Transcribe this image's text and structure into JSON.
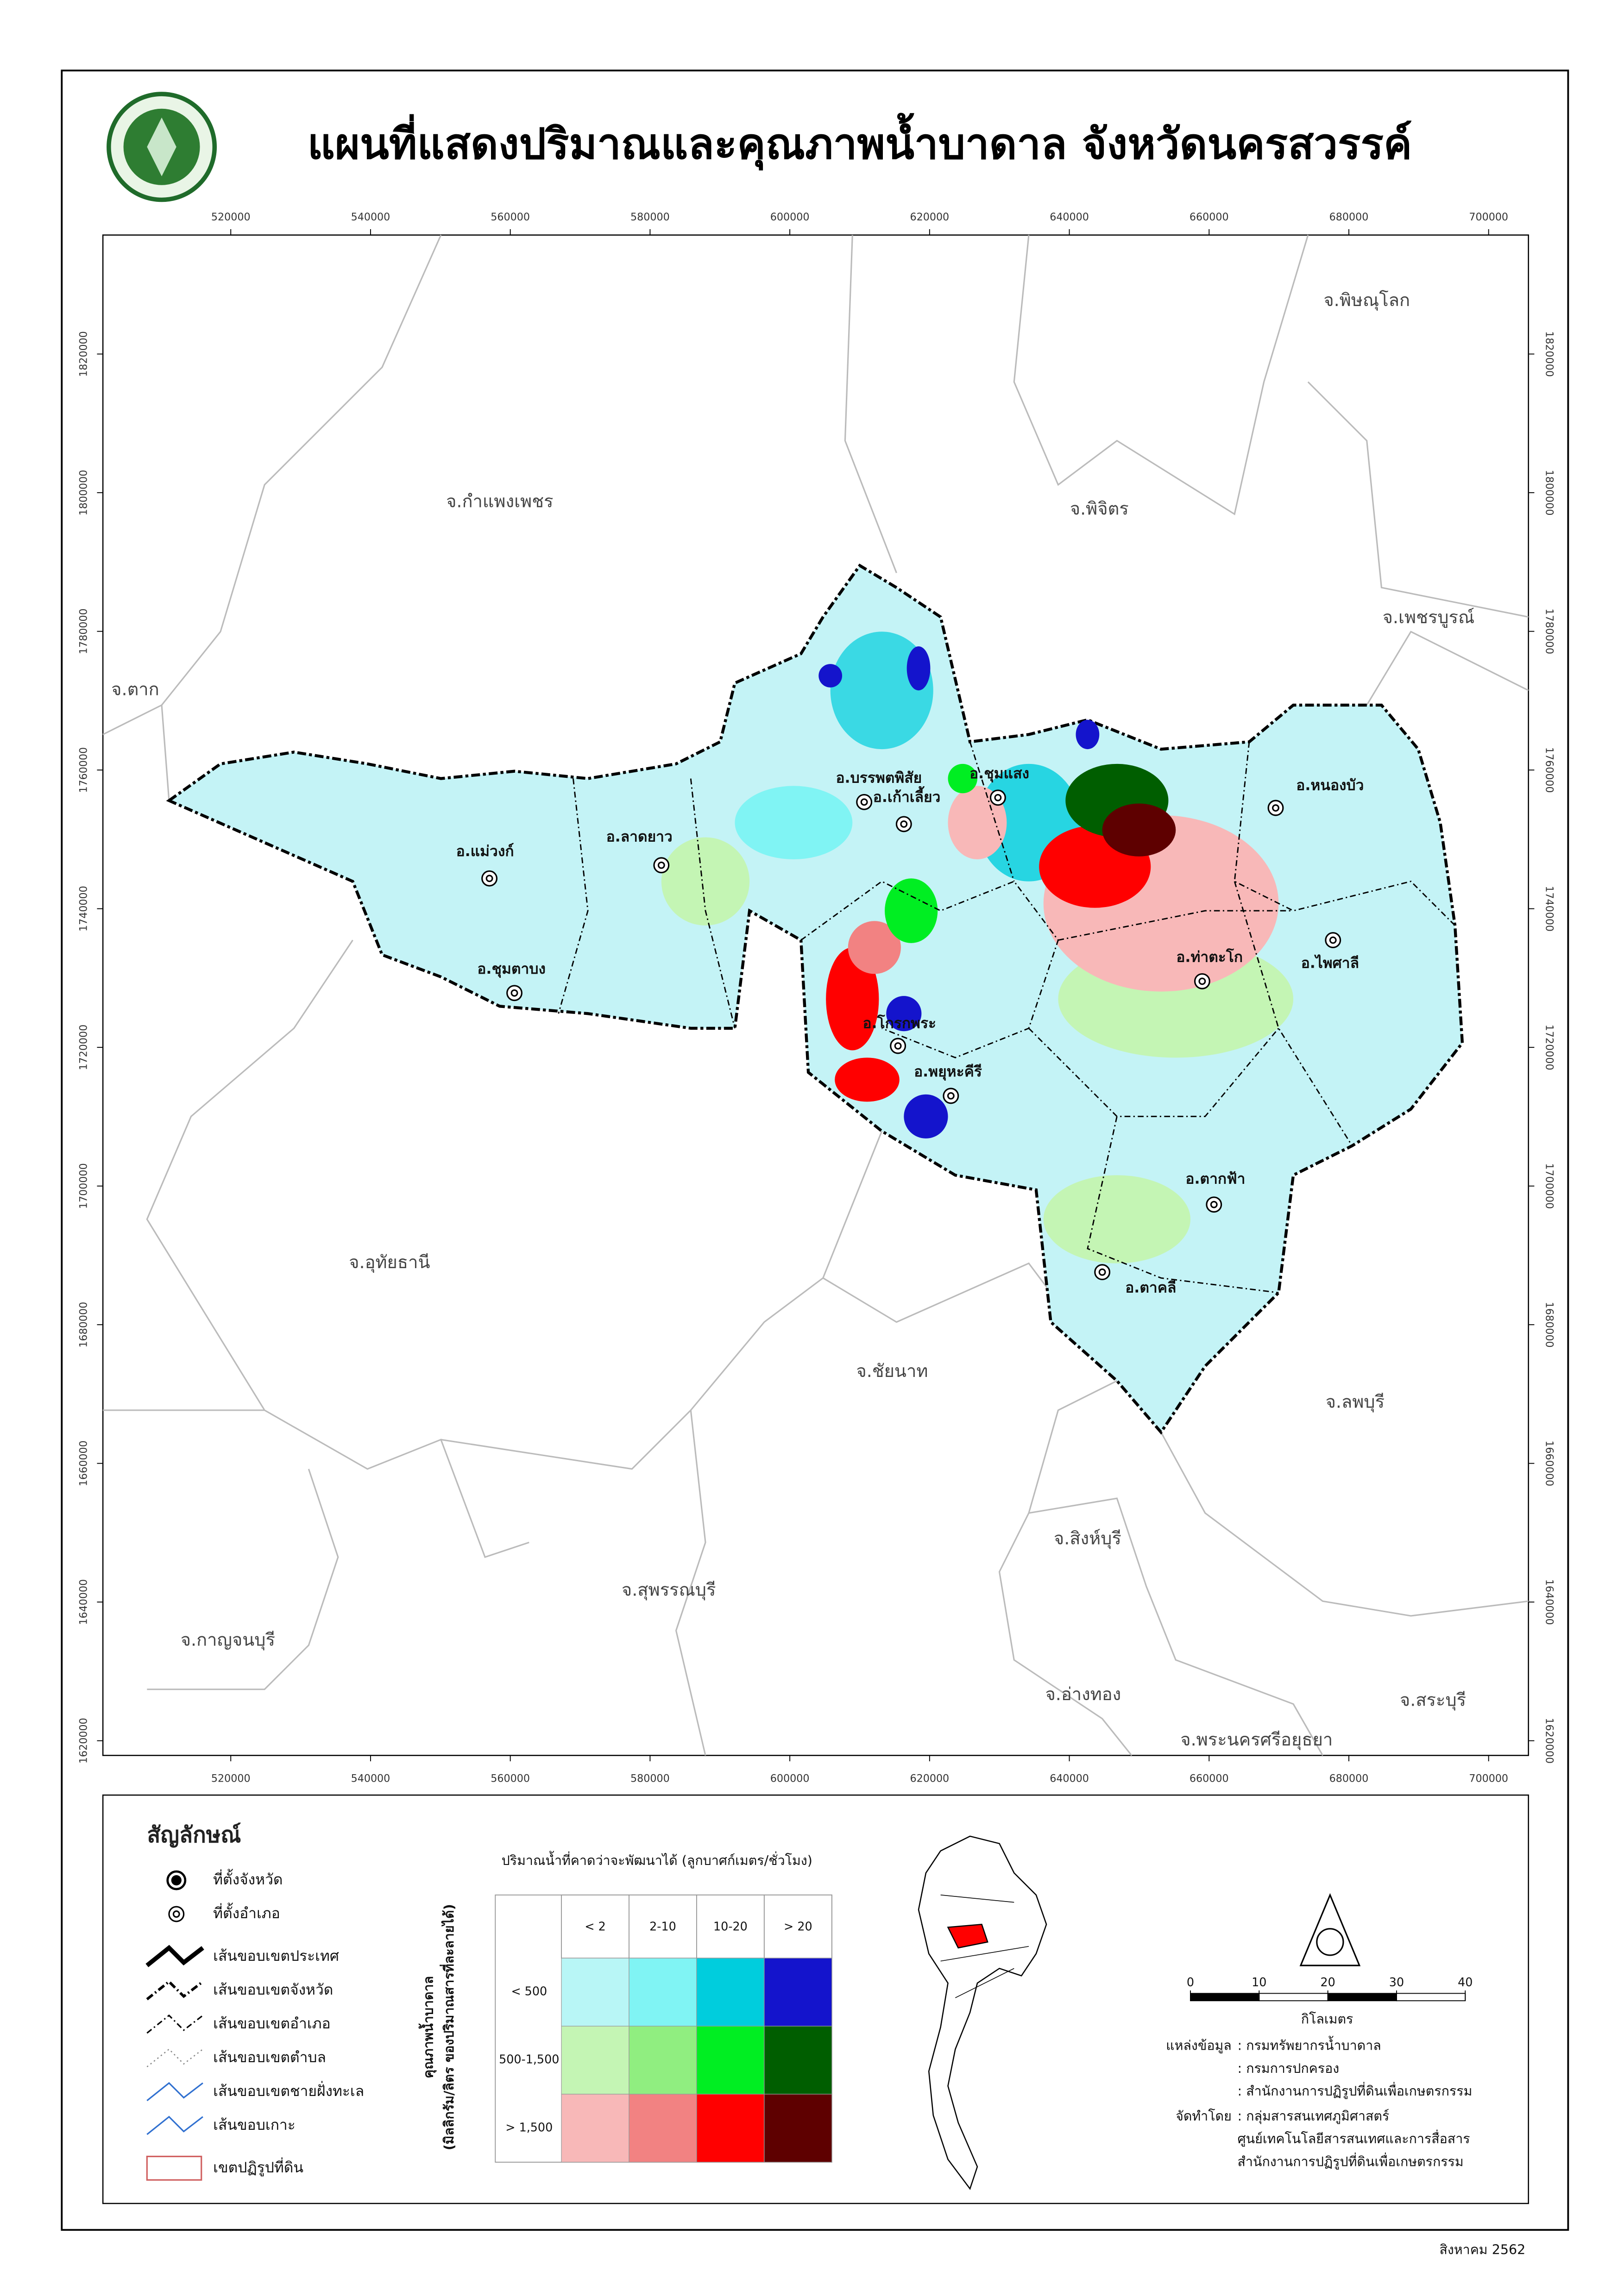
{
  "title": "แผนที่แสดงปริมาณและคุณภาพน้ำบาดาล จังหวัดนครสวรรค์",
  "coordinates": {
    "xlim": [
      501700,
      705700
    ],
    "ylim": [
      1617880,
      1837160
    ],
    "xticks": [
      520000,
      540000,
      560000,
      580000,
      600000,
      620000,
      640000,
      660000,
      680000,
      700000
    ],
    "yticks": [
      1820000,
      1800000,
      1780000,
      1760000,
      1740000,
      1720000,
      1700000,
      1680000,
      1660000,
      1640000,
      1620000
    ]
  },
  "provinces": [
    "จ.พิษณุโลก",
    "จ.กำแพงเพชร",
    "จ.พิจิตร",
    "จ.เพชรบูรณ์",
    "จ.ตาก",
    "จ.อุทัยธานี",
    "จ.ชัยนาท",
    "จ.ลพบุรี",
    "จ.สิงห์บุรี",
    "จ.สุพรรณบุรี",
    "จ.กาญจนบุรี",
    "จ.อ่างทอง",
    "จ.สระบุรี",
    "จ.พระนครศรีอยุธยา"
  ],
  "districts": [
    "อ.บรรพตพิสัย",
    "อ.ชุมแสง",
    "อ.หนองบัว",
    "อ.เก้าเลี้ยว",
    "อ.แม่วงก์",
    "อ.ลาดยาว",
    "อ.ท่าตะโก",
    "อ.ไพศาลี",
    "อ.ชุมตาบง",
    "อ.โกรกพระ",
    "อ.พยุหะคีรี",
    "อ.ตากฟ้า",
    "อ.ตาคลี"
  ],
  "legend": {
    "title": "สัญลักษณ์",
    "items": [
      "ที่ตั้งจังหวัด",
      "ที่ตั้งอำเภอ",
      "เส้นขอบเขตประเทศ",
      "เส้นขอบเขตจังหวัด",
      "เส้นขอบเขตอำเภอ",
      "เส้นขอบเขตตำบล",
      "เส้นขอบเขตชายฝั่งทะเล",
      "เส้นขอบเกาะ",
      "เขตปฏิรูปที่ดิน"
    ]
  },
  "matrix": {
    "x_title": "ปริมาณน้ำที่คาดว่าจะพัฒนาได้ (ลูกบาศก์เมตร/ชั่วโมง)",
    "y_title": "คุณภาพน้ำบาดาล",
    "y_subtitle": "(มิลลิกรัม/ลิตร ของปริมาณสารที่ละลายได้)",
    "columns": [
      "< 2",
      "2-10",
      "10-20",
      "> 20"
    ],
    "rows": [
      "< 500",
      "500-1,500",
      "> 1,500"
    ],
    "colors": [
      [
        "#b8f6f6",
        "#80f4f4",
        "#00cddd",
        "#1414cc"
      ],
      [
        "#c4f5b4",
        "#90ee80",
        "#00ee22",
        "#005e00"
      ],
      [
        "#f8b8b8",
        "#f28282",
        "#ff0000",
        "#5e0000"
      ]
    ]
  },
  "scale": {
    "ticks": [
      0,
      10,
      20,
      30,
      40
    ],
    "unit": "กิโลเมตร"
  },
  "sources": {
    "label": "แหล่งข้อมูล",
    "items": [
      ": กรมทรัพยากรน้ำบาดาล",
      ": กรมการปกครอง",
      ": สำนักงานการปฏิรูปที่ดินเพื่อเกษตรกรรม"
    ]
  },
  "producer": {
    "label": "จัดทำโดย",
    "items": [
      ": กลุ่มสารสนเทศภูมิศาสตร์",
      "ศูนย์เทคโนโลยีสารสนเทศและการสื่อสาร",
      "สำนักงานการปฏิรูปที่ดินเพื่อเกษตรกรรม"
    ]
  },
  "date": "สิงหาคม 2562"
}
